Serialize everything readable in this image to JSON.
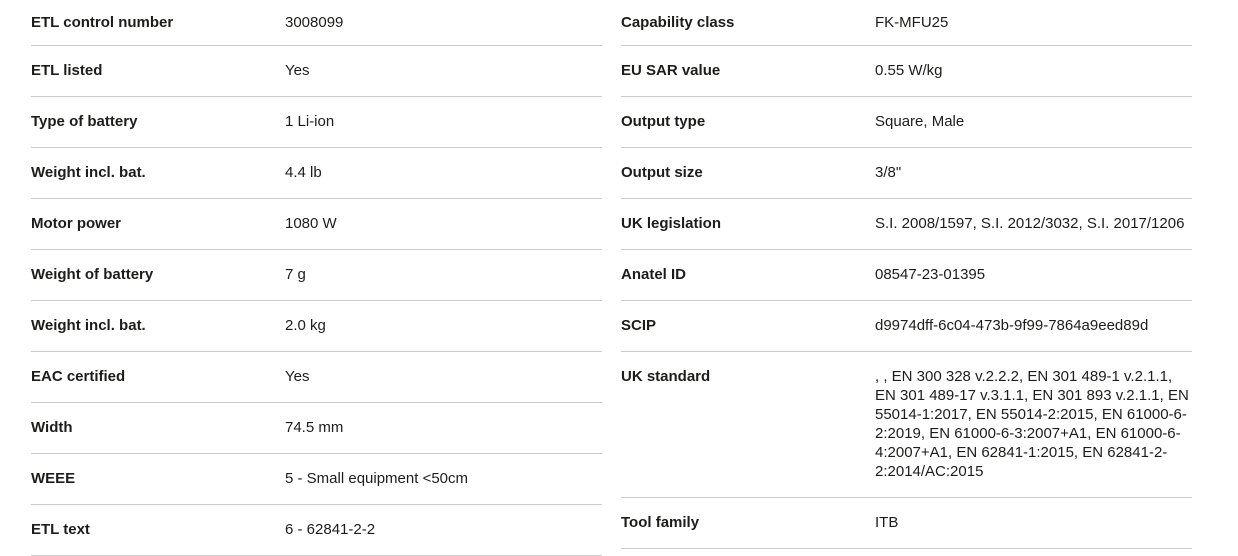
{
  "colors": {
    "background": "#ffffff",
    "text": "#1d1d1b",
    "divider": "#cccccc"
  },
  "specs": {
    "left": [
      {
        "label": "ETL control number",
        "value": "3008099"
      },
      {
        "label": "ETL listed",
        "value": "Yes"
      },
      {
        "label": "Type of battery",
        "value": "1 Li-ion"
      },
      {
        "label": "Weight incl. bat.",
        "value": "4.4 lb"
      },
      {
        "label": "Motor power",
        "value": "1080 W"
      },
      {
        "label": "Weight of battery",
        "value": "7 g"
      },
      {
        "label": "Weight incl. bat.",
        "value": "2.0 kg"
      },
      {
        "label": "EAC certified",
        "value": "Yes"
      },
      {
        "label": "Width",
        "value": "74.5 mm"
      },
      {
        "label": "WEEE",
        "value": "5 - Small equipment <50cm"
      },
      {
        "label": "ETL text",
        "value": "6 - 62841-2-2"
      }
    ],
    "right": [
      {
        "label": "Capability class",
        "value": "FK-MFU25"
      },
      {
        "label": "EU SAR value",
        "value": "0.55 W/kg"
      },
      {
        "label": "Output type",
        "value": "Square, Male"
      },
      {
        "label": "Output size",
        "value": "3/8\""
      },
      {
        "label": "UK legislation",
        "value": "S.I. 2008/1597, S.I. 2012/3032, S.I. 2017/1206"
      },
      {
        "label": "Anatel ID",
        "value": "08547-23-01395"
      },
      {
        "label": "SCIP",
        "value": "d9974dff-6c04-473b-9f99-7864a9eed89d"
      },
      {
        "label": "UK standard",
        "value": ", , EN 300 328 v.2.2.2, EN 301 489-1 v.2.1.1, EN 301 489-17 v.3.1.1, EN 301 893 v.2.1.1, EN 55014-1:2017, EN 55014-2:2015, EN 61000-6-2:2019, EN 61000-6-3:2007+A1, EN 61000-6-4:2007+A1, EN 62841-1:2015, EN 62841-2-2:2014/AC:2015"
      },
      {
        "label": "Tool family",
        "value": "ITB"
      }
    ]
  }
}
